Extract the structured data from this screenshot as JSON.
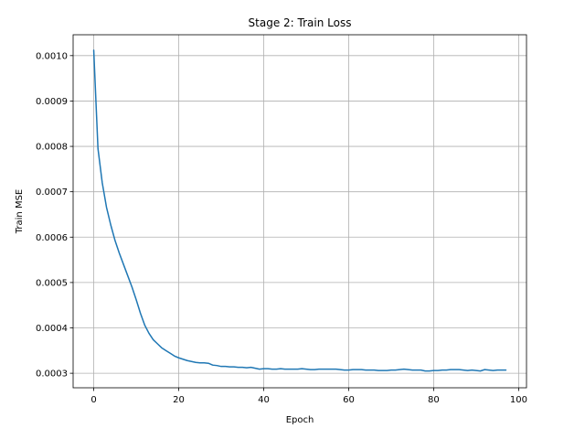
{
  "chart_data": {
    "type": "line",
    "title": "Stage 2: Train Loss",
    "xlabel": "Epoch",
    "ylabel": "Train MSE",
    "xlim": [
      -4.85,
      101.85
    ],
    "ylim": [
      0.000268,
      0.001046
    ],
    "xticks": [
      0,
      20,
      40,
      60,
      80,
      100
    ],
    "xtick_labels": [
      "0",
      "20",
      "40",
      "60",
      "80",
      "100"
    ],
    "yticks": [
      0.0003,
      0.0004,
      0.0005,
      0.0006,
      0.0007,
      0.0008,
      0.0009,
      0.001
    ],
    "ytick_labels": [
      "0.0003",
      "0.0004",
      "0.0005",
      "0.0006",
      "0.0007",
      "0.0008",
      "0.0009",
      "0.0010"
    ],
    "grid": true,
    "color": "#1f77b4",
    "series": [
      {
        "x": [
          0,
          1,
          2,
          3,
          4,
          5,
          6,
          7,
          8,
          9,
          10,
          11,
          12,
          13,
          14,
          15,
          16,
          17,
          18,
          19,
          20,
          21,
          22,
          23,
          24,
          25,
          26,
          27,
          28,
          29,
          30,
          31,
          32,
          33,
          34,
          35,
          36,
          37,
          38,
          39,
          40,
          41,
          42,
          43,
          44,
          45,
          46,
          47,
          48,
          49,
          50,
          51,
          52,
          53,
          54,
          55,
          56,
          57,
          58,
          59,
          60,
          61,
          62,
          63,
          64,
          65,
          66,
          67,
          68,
          69,
          70,
          71,
          72,
          73,
          74,
          75,
          76,
          77,
          78,
          79,
          80,
          81,
          82,
          83,
          84,
          85,
          86,
          87,
          88,
          89,
          90,
          91,
          92,
          93,
          94,
          95,
          96,
          97
        ],
        "y": [
          0.001012,
          0.000795,
          0.00072,
          0.000666,
          0.000627,
          0.000593,
          0.000565,
          0.00054,
          0.000515,
          0.00049,
          0.000462,
          0.000432,
          0.000406,
          0.000388,
          0.000374,
          0.000365,
          0.000356,
          0.00035,
          0.000344,
          0.000338,
          0.000334,
          0.000331,
          0.000328,
          0.000326,
          0.000324,
          0.000323,
          0.000323,
          0.000322,
          0.000318,
          0.000317,
          0.000315,
          0.000315,
          0.000314,
          0.000314,
          0.000313,
          0.000313,
          0.000312,
          0.000313,
          0.000311,
          0.000309,
          0.00031,
          0.00031,
          0.000309,
          0.000309,
          0.00031,
          0.000309,
          0.000309,
          0.000309,
          0.000309,
          0.00031,
          0.000309,
          0.000308,
          0.000308,
          0.000309,
          0.000309,
          0.000309,
          0.000309,
          0.000309,
          0.000308,
          0.000307,
          0.000307,
          0.000308,
          0.000308,
          0.000308,
          0.000307,
          0.000307,
          0.000307,
          0.000306,
          0.000306,
          0.000306,
          0.000307,
          0.000307,
          0.000308,
          0.000309,
          0.000308,
          0.000307,
          0.000307,
          0.000307,
          0.000305,
          0.000305,
          0.000306,
          0.000306,
          0.000307,
          0.000307,
          0.000308,
          0.000308,
          0.000308,
          0.000307,
          0.000306,
          0.000307,
          0.000306,
          0.000305,
          0.000308,
          0.000307,
          0.000306,
          0.000307,
          0.000307,
          0.000307
        ]
      }
    ]
  }
}
